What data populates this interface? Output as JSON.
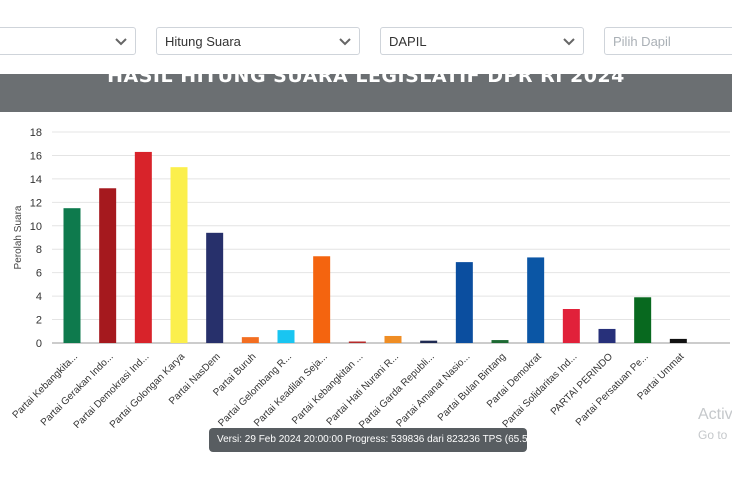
{
  "filters": [
    {
      "value": "",
      "name": "filter-select-1"
    },
    {
      "value": "Hitung Suara",
      "name": "filter-select-hitung-suara"
    },
    {
      "value": "DAPIL",
      "name": "filter-select-dapil"
    },
    {
      "placeholder": "Pilih Dapil",
      "name": "filter-select-pilih-dapil"
    }
  ],
  "chart_title": "HASIL HITUNG SUARA LEGISLATIF DPR RI 2024",
  "tooltip_text": "Versi: 29 Feb 2024 20:00:00 Progress: 539836 dari 823236 TPS (65.57%)",
  "watermark": {
    "line1": "Activ",
    "line2": "Go to"
  },
  "chart_data": {
    "type": "bar",
    "title": "HASIL HITUNG SUARA LEGISLATIF DPR RI 2024",
    "ylabel": "Perolah Suara",
    "xlabel": "",
    "ylim": [
      0,
      18
    ],
    "yticks": [
      0,
      2,
      4,
      6,
      8,
      10,
      12,
      14,
      16,
      18
    ],
    "grid": true,
    "categories": [
      "Partai Kebangkita...",
      "Partai Gerakan Indo...",
      "Partai Demokrasi Ind...",
      "Partai Golongan Karya",
      "Partai NasDem",
      "Partai Buruh",
      "Partai Gelombang R...",
      "Partai Keadilan Seja...",
      "Partai Kebangkitan ...",
      "Partai Hati Nurani R...",
      "Partai Garda Republi...",
      "Partai Amanat Nasio...",
      "Partai Bulan Bintang",
      "Partai Demokrat",
      "Partai Solidaritas Ind...",
      "PARTAI PERINDO",
      "Partai Persatuan Pe...",
      "Partai Ummat"
    ],
    "values": [
      11.5,
      13.2,
      16.3,
      15.0,
      9.4,
      0.5,
      1.1,
      7.4,
      0.1,
      0.6,
      0.2,
      6.9,
      0.25,
      7.3,
      2.9,
      1.2,
      3.9,
      0.35
    ],
    "colors": [
      "#0e7a4d",
      "#a5191e",
      "#d8232a",
      "#fbef4c",
      "#27306b",
      "#f36e21",
      "#19c5f1",
      "#f4640f",
      "#b52a2a",
      "#ef8d24",
      "#1f2a52",
      "#0b4e9f",
      "#1d6a33",
      "#0b56a5",
      "#e1213a",
      "#27307a",
      "#08691f",
      "#111111"
    ]
  }
}
